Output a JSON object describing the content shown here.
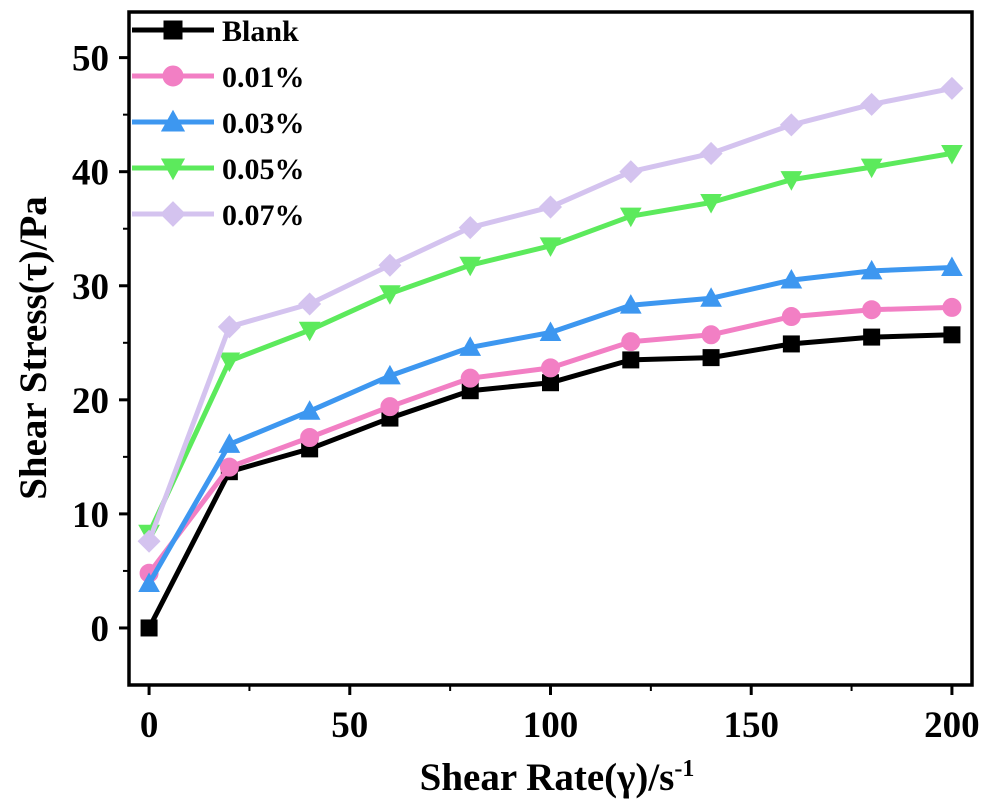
{
  "chart_data": {
    "type": "line",
    "title": "",
    "xlabel": "Shear Rate(γ)/s",
    "xlabel_superscript": "-1",
    "ylabel": "Shear Stress(τ)/Pa",
    "xlim": [
      -5,
      205
    ],
    "ylim": [
      -5,
      54
    ],
    "xticks": [
      0,
      50,
      100,
      150,
      200
    ],
    "yticks": [
      0,
      10,
      20,
      30,
      40,
      50
    ],
    "grid": false,
    "legend_position": "top-left",
    "x": [
      0,
      20,
      40,
      60,
      80,
      100,
      120,
      140,
      160,
      180,
      200
    ],
    "series": [
      {
        "name": "Blank",
        "color": "#000000",
        "marker": "square",
        "values": [
          0.0,
          13.7,
          15.7,
          18.4,
          20.8,
          21.5,
          23.5,
          23.7,
          24.9,
          25.5,
          25.7
        ]
      },
      {
        "name": "0.01%",
        "color": "#f27fc4",
        "marker": "circle",
        "values": [
          4.8,
          14.1,
          16.7,
          19.4,
          21.9,
          22.8,
          25.1,
          25.7,
          27.3,
          27.9,
          28.1
        ]
      },
      {
        "name": "0.03%",
        "color": "#3d97f0",
        "marker": "triangle-up",
        "values": [
          3.9,
          16.1,
          19.0,
          22.1,
          24.6,
          25.9,
          28.3,
          28.9,
          30.5,
          31.3,
          31.6
        ]
      },
      {
        "name": "0.05%",
        "color": "#5cea5c",
        "marker": "triangle-down",
        "values": [
          8.3,
          23.4,
          26.1,
          29.3,
          31.8,
          33.5,
          36.1,
          37.3,
          39.3,
          40.4,
          41.6
        ]
      },
      {
        "name": "0.07%",
        "color": "#d4c3ef",
        "marker": "diamond",
        "values": [
          7.6,
          26.4,
          28.4,
          31.8,
          35.1,
          36.9,
          40.0,
          41.6,
          44.1,
          45.9,
          47.3
        ]
      }
    ]
  }
}
